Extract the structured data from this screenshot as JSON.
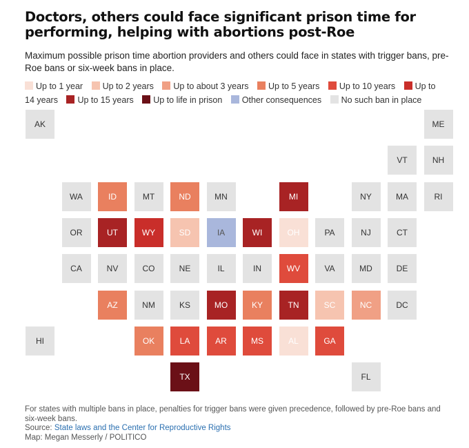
{
  "title": "Doctors, others could face significant prison time for performing, helping with abortions post-Roe",
  "subtitle": "Maximum possible prison time abortion providers and others could face in states with trigger bans, pre-Roe bans or six-week bans in place.",
  "legend": [
    {
      "label": "Up to 1 year",
      "color": "#f9e0d6"
    },
    {
      "label": "Up to 2 years",
      "color": "#f6c4b0"
    },
    {
      "label": "Up to about 3 years",
      "color": "#f0a085"
    },
    {
      "label": "Up to 5 years",
      "color": "#e9805f"
    },
    {
      "label": "Up to 10 years",
      "color": "#df4b3c"
    },
    {
      "label": "Up to 14 years",
      "color": "#c92e2a"
    },
    {
      "label": "Up to 15 years",
      "color": "#a82324"
    },
    {
      "label": "Up to life in prison",
      "color": "#6b1017"
    },
    {
      "label": "Other consequences",
      "color": "#a9b7dc"
    },
    {
      "label": "No such ban in place",
      "color": "#e3e3e3"
    }
  ],
  "states": [
    {
      "abbr": "AK",
      "row": 0,
      "col": 0,
      "category": 9
    },
    {
      "abbr": "ME",
      "row": 0,
      "col": 11,
      "category": 9
    },
    {
      "abbr": "VT",
      "row": 1,
      "col": 10,
      "category": 9
    },
    {
      "abbr": "NH",
      "row": 1,
      "col": 11,
      "category": 9
    },
    {
      "abbr": "WA",
      "row": 2,
      "col": 1,
      "category": 9
    },
    {
      "abbr": "ID",
      "row": 2,
      "col": 2,
      "category": 3
    },
    {
      "abbr": "MT",
      "row": 2,
      "col": 3,
      "category": 9
    },
    {
      "abbr": "ND",
      "row": 2,
      "col": 4,
      "category": 3
    },
    {
      "abbr": "MN",
      "row": 2,
      "col": 5,
      "category": 9
    },
    {
      "abbr": "MI",
      "row": 2,
      "col": 7,
      "category": 6
    },
    {
      "abbr": "NY",
      "row": 2,
      "col": 9,
      "category": 9
    },
    {
      "abbr": "MA",
      "row": 2,
      "col": 10,
      "category": 9
    },
    {
      "abbr": "RI",
      "row": 2,
      "col": 11,
      "category": 9
    },
    {
      "abbr": "OR",
      "row": 3,
      "col": 1,
      "category": 9
    },
    {
      "abbr": "UT",
      "row": 3,
      "col": 2,
      "category": 6
    },
    {
      "abbr": "WY",
      "row": 3,
      "col": 3,
      "category": 5
    },
    {
      "abbr": "SD",
      "row": 3,
      "col": 4,
      "category": 1
    },
    {
      "abbr": "IA",
      "row": 3,
      "col": 5,
      "category": 8
    },
    {
      "abbr": "WI",
      "row": 3,
      "col": 6,
      "category": 6
    },
    {
      "abbr": "OH",
      "row": 3,
      "col": 7,
      "category": 0
    },
    {
      "abbr": "PA",
      "row": 3,
      "col": 8,
      "category": 9
    },
    {
      "abbr": "NJ",
      "row": 3,
      "col": 9,
      "category": 9
    },
    {
      "abbr": "CT",
      "row": 3,
      "col": 10,
      "category": 9
    },
    {
      "abbr": "CA",
      "row": 4,
      "col": 1,
      "category": 9
    },
    {
      "abbr": "NV",
      "row": 4,
      "col": 2,
      "category": 9
    },
    {
      "abbr": "CO",
      "row": 4,
      "col": 3,
      "category": 9
    },
    {
      "abbr": "NE",
      "row": 4,
      "col": 4,
      "category": 9
    },
    {
      "abbr": "IL",
      "row": 4,
      "col": 5,
      "category": 9
    },
    {
      "abbr": "IN",
      "row": 4,
      "col": 6,
      "category": 9
    },
    {
      "abbr": "WV",
      "row": 4,
      "col": 7,
      "category": 4
    },
    {
      "abbr": "VA",
      "row": 4,
      "col": 8,
      "category": 9
    },
    {
      "abbr": "MD",
      "row": 4,
      "col": 9,
      "category": 9
    },
    {
      "abbr": "DE",
      "row": 4,
      "col": 10,
      "category": 9
    },
    {
      "abbr": "AZ",
      "row": 5,
      "col": 2,
      "category": 3
    },
    {
      "abbr": "NM",
      "row": 5,
      "col": 3,
      "category": 9
    },
    {
      "abbr": "KS",
      "row": 5,
      "col": 4,
      "category": 9
    },
    {
      "abbr": "MO",
      "row": 5,
      "col": 5,
      "category": 6
    },
    {
      "abbr": "KY",
      "row": 5,
      "col": 6,
      "category": 3
    },
    {
      "abbr": "TN",
      "row": 5,
      "col": 7,
      "category": 6
    },
    {
      "abbr": "SC",
      "row": 5,
      "col": 8,
      "category": 1
    },
    {
      "abbr": "NC",
      "row": 5,
      "col": 9,
      "category": 2
    },
    {
      "abbr": "DC",
      "row": 5,
      "col": 10,
      "category": 9
    },
    {
      "abbr": "HI",
      "row": 6,
      "col": 0,
      "category": 9
    },
    {
      "abbr": "OK",
      "row": 6,
      "col": 3,
      "category": 3
    },
    {
      "abbr": "LA",
      "row": 6,
      "col": 4,
      "category": 4
    },
    {
      "abbr": "AR",
      "row": 6,
      "col": 5,
      "category": 4
    },
    {
      "abbr": "MS",
      "row": 6,
      "col": 6,
      "category": 4
    },
    {
      "abbr": "AL",
      "row": 6,
      "col": 7,
      "category": 0
    },
    {
      "abbr": "GA",
      "row": 6,
      "col": 8,
      "category": 4
    },
    {
      "abbr": "TX",
      "row": 7,
      "col": 4,
      "category": 7
    },
    {
      "abbr": "FL",
      "row": 7,
      "col": 9,
      "category": 9
    }
  ],
  "notes": {
    "footnote": "For states with multiple bans in place, penalties for trigger bans were given precedence, followed by pre-Roe bans and six-week bans.",
    "source_prefix": "Source: ",
    "source_link": "State laws and the Center for Reproductive Rights",
    "credit": "Map: Megan Messerly / POLITICO"
  }
}
